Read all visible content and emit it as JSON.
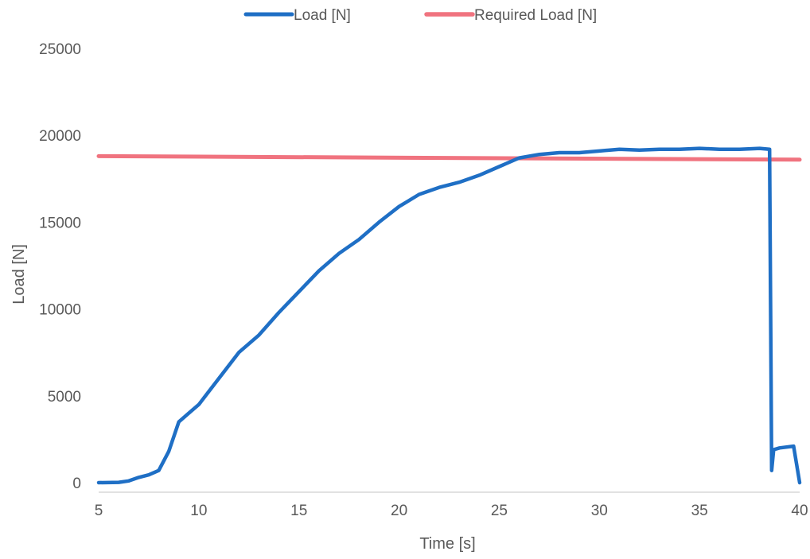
{
  "chart_data": {
    "type": "line",
    "title": "",
    "xlabel": "Time [s]",
    "ylabel": "Load [N]",
    "xlim": [
      5,
      40
    ],
    "ylim": [
      0,
      25000
    ],
    "x_ticks": [
      "5",
      "10",
      "15",
      "20",
      "25",
      "30",
      "35",
      "40"
    ],
    "y_ticks": [
      "0",
      "5000",
      "10000",
      "15000",
      "20000",
      "25000"
    ],
    "grid": false,
    "legend_position": "top",
    "series": [
      {
        "name": "Load [N]",
        "color": "#1f6fc5",
        "x": [
          5,
          6,
          6.5,
          7,
          7.5,
          8,
          8.5,
          9,
          9.5,
          10,
          11,
          12,
          13,
          14,
          15,
          16,
          17,
          18,
          19,
          20,
          21,
          22,
          23,
          24,
          25,
          26,
          27,
          28,
          29,
          30,
          31,
          32,
          33,
          34,
          35,
          36,
          37,
          38,
          38.5,
          38.6,
          38.7,
          39,
          39.7,
          40
        ],
        "y": [
          0,
          20,
          100,
          300,
          450,
          700,
          1800,
          3500,
          4000,
          4500,
          6000,
          7500,
          8500,
          9800,
          11000,
          12200,
          13200,
          14000,
          15000,
          15900,
          16600,
          17000,
          17300,
          17700,
          18200,
          18700,
          18900,
          19000,
          19000,
          19100,
          19200,
          19150,
          19200,
          19200,
          19250,
          19200,
          19200,
          19250,
          19200,
          700,
          1900,
          2000,
          2100,
          0
        ]
      },
      {
        "name": "Required Load [N]",
        "color": "#f0737f",
        "x": [
          5,
          40
        ],
        "y": [
          18800,
          18600
        ]
      }
    ]
  }
}
